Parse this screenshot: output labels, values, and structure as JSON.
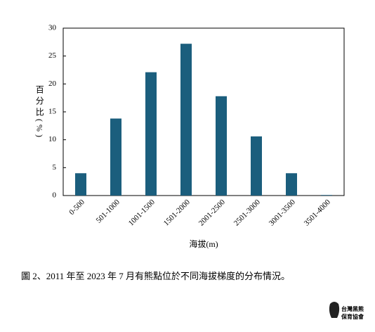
{
  "chart_data": {
    "type": "bar",
    "y_label": "百分比(%)",
    "x_label": "海拔(m)",
    "categories": [
      "0-500",
      "501-1000",
      "1001-1500",
      "1501-2000",
      "2001-2500",
      "2501-3000",
      "3001-3500",
      "3501-4000"
    ],
    "values": [
      4.0,
      13.8,
      22.1,
      27.2,
      17.8,
      10.6,
      4.0,
      0.1
    ],
    "color": "#1b5e7d",
    "ylim": [
      0,
      30
    ],
    "yticks": [
      0,
      5,
      10,
      15,
      20,
      25,
      30
    ],
    "grid": false
  },
  "caption": "圖 2、2011 年至 2023 年 7 月有熊點位於不同海拔梯度的分布情況。",
  "logo": {
    "title": "台灣黑熊",
    "subtitle": "保育協會"
  }
}
